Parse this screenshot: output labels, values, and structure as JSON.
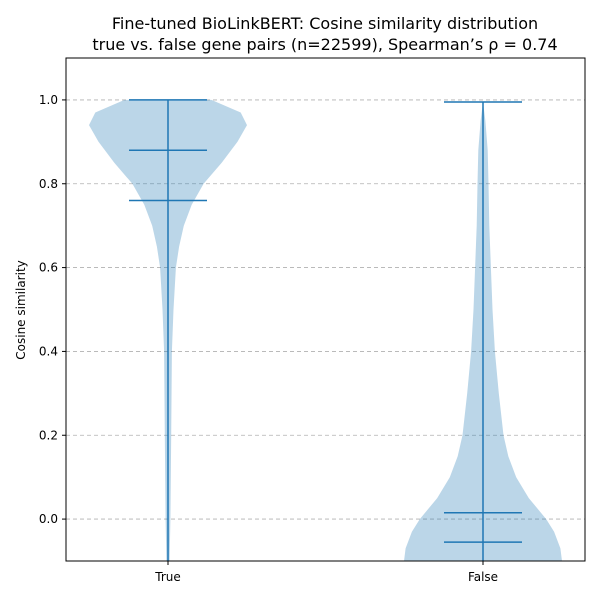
{
  "chart_data": {
    "type": "violin",
    "title_line1": "Fine-tuned BioLinkBERT: Cosine similarity distribution",
    "title_line2": "true vs. false gene pairs (n=22599), Spearman’s ρ = 0.74",
    "xlabel": "",
    "ylabel": "Cosine similarity",
    "ylim": [
      -0.1,
      1.1
    ],
    "yticks": [
      0.0,
      0.2,
      0.4,
      0.6,
      0.8,
      1.0
    ],
    "ytick_labels": [
      "0.0",
      "0.2",
      "0.4",
      "0.6",
      "0.8",
      "1.0"
    ],
    "categories": [
      "True",
      "False"
    ],
    "grid": "horizontal dashed",
    "color": "#1f77b4",
    "violins": [
      {
        "category": "True",
        "min": -0.1,
        "max": 1.0,
        "median": 0.88,
        "mean": 0.76,
        "density": [
          [
            -0.1,
            0.02
          ],
          [
            0.0,
            0.03
          ],
          [
            0.2,
            0.04
          ],
          [
            0.4,
            0.05
          ],
          [
            0.5,
            0.07
          ],
          [
            0.6,
            0.1
          ],
          [
            0.65,
            0.14
          ],
          [
            0.7,
            0.2
          ],
          [
            0.75,
            0.3
          ],
          [
            0.8,
            0.45
          ],
          [
            0.85,
            0.68
          ],
          [
            0.9,
            0.88
          ],
          [
            0.94,
            1.0
          ],
          [
            0.97,
            0.92
          ],
          [
            1.0,
            0.55
          ]
        ]
      },
      {
        "category": "False",
        "min": -0.1,
        "max": 0.995,
        "median": 0.015,
        "mean": -0.055,
        "density": [
          [
            -0.1,
            1.0
          ],
          [
            -0.07,
            0.98
          ],
          [
            -0.03,
            0.9
          ],
          [
            0.0,
            0.8
          ],
          [
            0.05,
            0.58
          ],
          [
            0.1,
            0.42
          ],
          [
            0.15,
            0.32
          ],
          [
            0.2,
            0.26
          ],
          [
            0.3,
            0.2
          ],
          [
            0.4,
            0.15
          ],
          [
            0.5,
            0.12
          ],
          [
            0.6,
            0.1
          ],
          [
            0.7,
            0.08
          ],
          [
            0.8,
            0.07
          ],
          [
            0.88,
            0.06
          ],
          [
            0.95,
            0.03
          ],
          [
            0.995,
            0.0
          ]
        ]
      }
    ]
  }
}
